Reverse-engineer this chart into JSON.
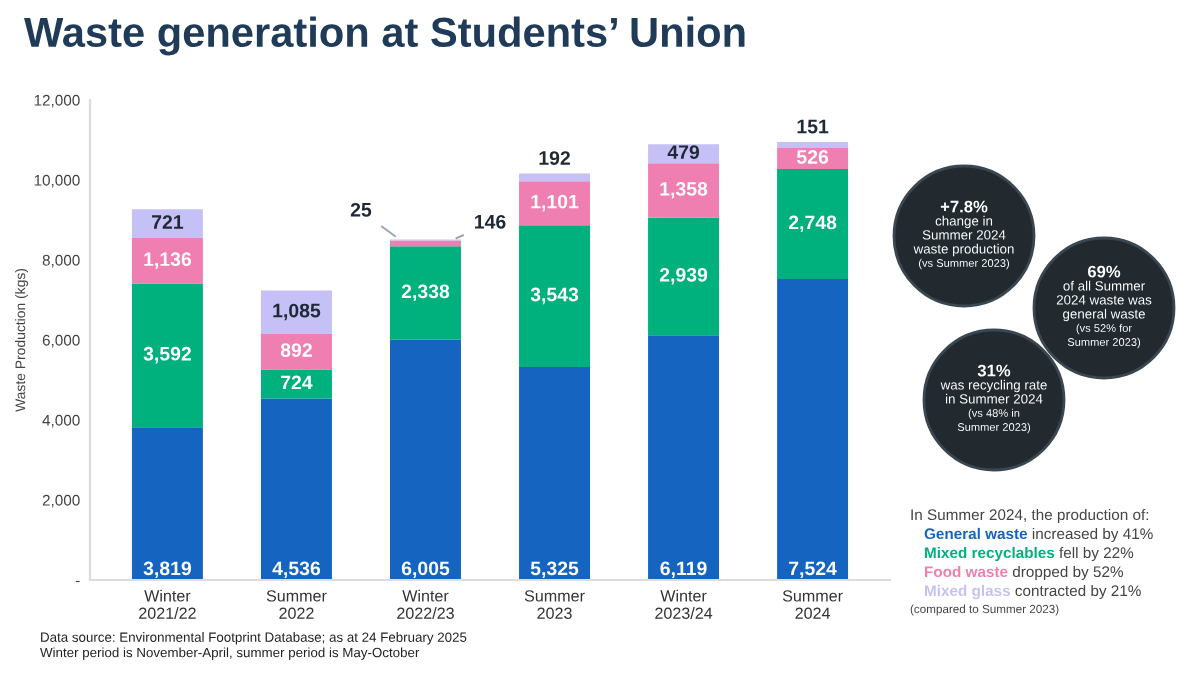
{
  "chart_data": {
    "type": "bar",
    "stacked": true,
    "title": "Waste generation at Students’ Union",
    "ylabel": "Waste Production (kgs)",
    "categories": [
      "Winter\n2021/22",
      "Summer\n2022",
      "Winter\n2022/23",
      "Summer\n2023",
      "Winter\n2023/24",
      "Summer\n2024"
    ],
    "series": [
      {
        "name": "General waste",
        "color": "#1565c0",
        "values": [
          3819,
          4536,
          6005,
          5325,
          6119,
          7524
        ],
        "value_labels": [
          "3,819",
          "4,536",
          "6,005",
          "5,325",
          "6,119",
          "7,524"
        ]
      },
      {
        "name": "Mixed recyclables",
        "color": "#00b07d",
        "values": [
          3592,
          724,
          2338,
          3543,
          2939,
          2748
        ],
        "value_labels": [
          "3,592",
          "724",
          "2,338",
          "3,543",
          "2,939",
          "2,748"
        ]
      },
      {
        "name": "Food waste",
        "color": "#ef7fb1",
        "values": [
          1136,
          892,
          146,
          1101,
          1358,
          526
        ],
        "value_labels": [
          "1,136",
          "892",
          "146",
          "1,101",
          "1,358",
          "526"
        ]
      },
      {
        "name": "Mixed glass",
        "color": "#c5c0f5",
        "values": [
          721,
          1085,
          25,
          192,
          479,
          151
        ],
        "value_labels": [
          "721",
          "1,085",
          "25",
          "192",
          "479",
          "151"
        ]
      }
    ],
    "ylim": [
      0,
      12000
    ],
    "yticks": [
      {
        "value": 0,
        "label": "-"
      },
      {
        "value": 2000,
        "label": "2,000"
      },
      {
        "value": 4000,
        "label": "4,000"
      },
      {
        "value": 6000,
        "label": "6,000"
      },
      {
        "value": 8000,
        "label": "8,000"
      },
      {
        "value": 10000,
        "label": "10,000"
      },
      {
        "value": 12000,
        "label": "12,000"
      }
    ],
    "grid": false,
    "legend": "right",
    "annotations": [
      "+7.8%\nchange in\nSummer 2024\nwaste production\n(vs Summer 2023)",
      "69%\nof all Summer\n2024 waste was\ngeneral waste\n(vs 52% for\nSummer 2023)",
      "31%\nwas recycling rate\nin Summer 2024\n(vs 48% in\nSummer 2023)",
      "In Summer 2024, the production of:",
      " increased by 41%",
      " fell by 22%",
      " dropped by 52%",
      " contracted by 21%",
      "(compared to Summer 2023)",
      "Data source: Environmental Footprint Database; as at 24 February 2025\nWinter period is November-April, summer period is May-October"
    ]
  }
}
